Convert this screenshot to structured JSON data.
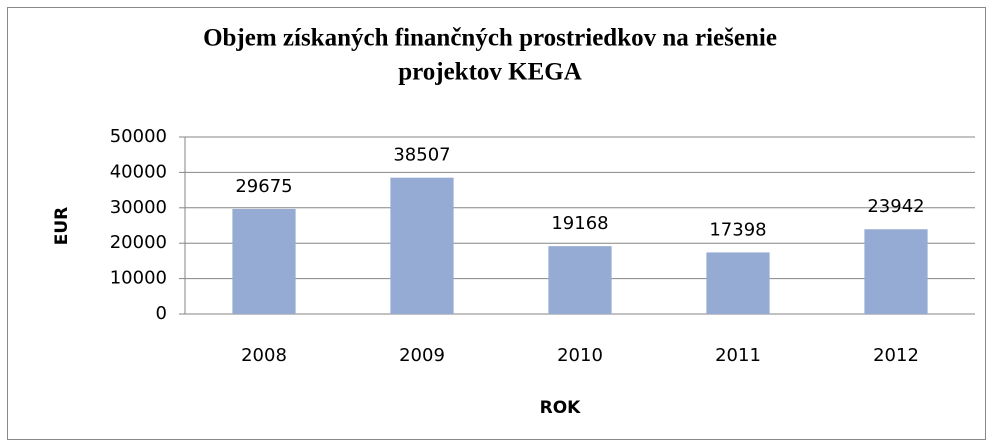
{
  "chart_data": {
    "type": "bar",
    "title": [
      "Objem získaných finančných prostriedkov na riešenie",
      "projektov KEGA"
    ],
    "x_label": "ROK",
    "y_label": "EUR",
    "categories": [
      "2008",
      "2009",
      "2010",
      "2011",
      "2012"
    ],
    "values": [
      29675,
      38507,
      19168,
      17398,
      23942
    ],
    "color": "#95abd4",
    "ylim": [
      0,
      50000
    ],
    "yticks": [
      0,
      10000,
      20000,
      30000,
      40000,
      50000
    ],
    "grid": true
  }
}
